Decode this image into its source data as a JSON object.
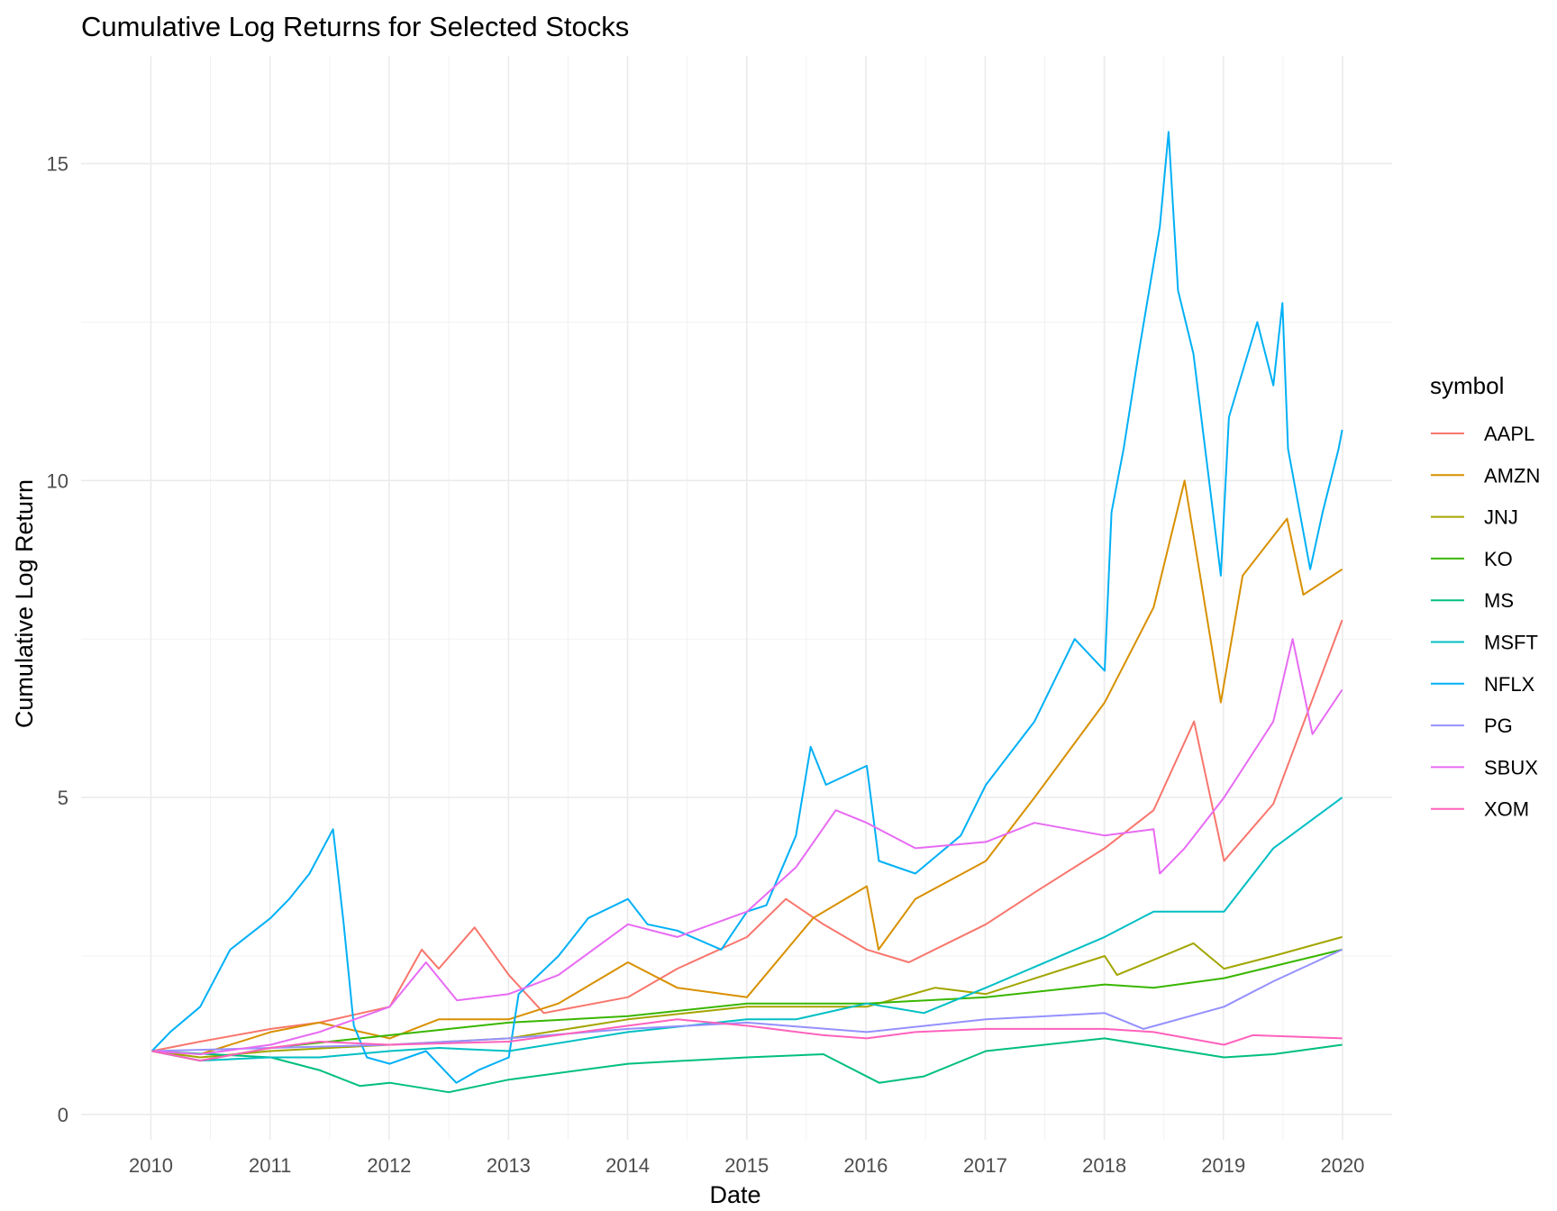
{
  "chart_data": {
    "type": "line",
    "title": "Cumulative Log Returns for Selected Stocks",
    "xlabel": "Date",
    "ylabel": "Cumulative Log Return",
    "xlim": [
      "2009-06-01",
      "2020-06-01"
    ],
    "ylim": [
      -0.4,
      16.7
    ],
    "x_ticks": [
      "2010-01-01",
      "2011-01-01",
      "2012-01-01",
      "2013-01-01",
      "2014-01-01",
      "2015-01-01",
      "2016-01-01",
      "2017-01-01",
      "2018-01-01",
      "2019-01-01",
      "2020-01-01"
    ],
    "x_tick_labels": [
      "2010",
      "2011",
      "2012",
      "2013",
      "2014",
      "2015",
      "2016",
      "2017",
      "2018",
      "2019",
      "2020"
    ],
    "y_ticks": [
      0,
      5,
      10,
      15
    ],
    "y_tick_labels": [
      "0",
      "5",
      "10",
      "15"
    ],
    "grid": true,
    "legend": {
      "title": "symbol",
      "position": "right"
    },
    "series": [
      {
        "name": "AAPL",
        "color": "#F8766D",
        "x": [
          "2010-01-04",
          "2010-06-01",
          "2011-01-03",
          "2011-06-01",
          "2012-01-03",
          "2012-04-10",
          "2012-06-01",
          "2012-09-19",
          "2013-01-02",
          "2013-04-19",
          "2014-01-02",
          "2014-06-02",
          "2015-01-02",
          "2015-05-01",
          "2015-08-24",
          "2016-01-04",
          "2016-05-12",
          "2017-01-03",
          "2017-06-01",
          "2018-01-02",
          "2018-06-01",
          "2018-10-03",
          "2019-01-03",
          "2019-06-03",
          "2019-12-31"
        ],
        "y": [
          1.0,
          1.15,
          1.35,
          1.45,
          1.7,
          2.6,
          2.3,
          2.95,
          2.2,
          1.6,
          1.85,
          2.3,
          2.8,
          3.4,
          3.0,
          2.6,
          2.4,
          3.0,
          3.5,
          4.2,
          4.8,
          6.2,
          4.0,
          4.9,
          7.8
        ]
      },
      {
        "name": "AMZN",
        "color": "#D89000",
        "x": [
          "2010-01-04",
          "2010-06-01",
          "2011-01-03",
          "2011-06-01",
          "2012-01-03",
          "2012-06-01",
          "2013-01-02",
          "2013-06-03",
          "2014-01-02",
          "2014-06-02",
          "2015-01-02",
          "2015-07-24",
          "2016-01-04",
          "2016-02-09",
          "2016-06-01",
          "2017-01-03",
          "2017-06-01",
          "2018-01-02",
          "2018-06-01",
          "2018-09-04",
          "2018-12-24",
          "2019-03-01",
          "2019-07-15",
          "2019-09-03",
          "2019-12-31"
        ],
        "y": [
          1.0,
          0.95,
          1.3,
          1.45,
          1.2,
          1.5,
          1.5,
          1.75,
          2.4,
          2.0,
          1.85,
          3.1,
          3.6,
          2.6,
          3.4,
          4.0,
          5.0,
          6.5,
          8.0,
          10.0,
          6.5,
          8.5,
          9.4,
          8.2,
          8.6
        ]
      },
      {
        "name": "JNJ",
        "color": "#A3A500",
        "x": [
          "2010-01-04",
          "2010-06-01",
          "2011-01-03",
          "2012-01-03",
          "2013-01-02",
          "2014-01-02",
          "2015-01-02",
          "2016-01-04",
          "2016-08-01",
          "2017-01-03",
          "2018-01-02",
          "2018-02-09",
          "2018-10-01",
          "2019-01-03",
          "2019-06-03",
          "2019-12-31"
        ],
        "y": [
          1.0,
          0.9,
          1.0,
          1.1,
          1.2,
          1.5,
          1.7,
          1.7,
          2.0,
          1.9,
          2.5,
          2.2,
          2.7,
          2.3,
          2.5,
          2.8
        ]
      },
      {
        "name": "KO",
        "color": "#39B600",
        "x": [
          "2010-01-04",
          "2010-06-01",
          "2011-01-03",
          "2012-01-03",
          "2013-01-02",
          "2014-01-02",
          "2015-01-02",
          "2016-01-04",
          "2017-01-03",
          "2018-01-02",
          "2018-06-01",
          "2019-01-03",
          "2019-12-31"
        ],
        "y": [
          1.0,
          0.85,
          1.05,
          1.25,
          1.45,
          1.55,
          1.75,
          1.75,
          1.85,
          2.05,
          2.0,
          2.15,
          2.6
        ]
      },
      {
        "name": "MS",
        "color": "#00BF7D",
        "x": [
          "2010-01-04",
          "2011-01-03",
          "2011-06-01",
          "2011-10-03",
          "2012-01-03",
          "2012-07-02",
          "2013-01-02",
          "2014-01-02",
          "2015-01-02",
          "2015-08-24",
          "2016-02-11",
          "2016-06-27",
          "2017-01-03",
          "2018-01-02",
          "2019-01-03",
          "2019-06-03",
          "2019-12-31"
        ],
        "y": [
          1.0,
          0.9,
          0.7,
          0.45,
          0.5,
          0.35,
          0.55,
          0.8,
          0.9,
          0.95,
          0.5,
          0.6,
          1.0,
          1.2,
          0.9,
          0.95,
          1.1
        ]
      },
      {
        "name": "MSFT",
        "color": "#00BFC4",
        "x": [
          "2010-01-04",
          "2010-06-01",
          "2011-01-03",
          "2011-06-01",
          "2012-01-03",
          "2012-06-01",
          "2013-01-02",
          "2014-01-02",
          "2015-01-02",
          "2015-06-01",
          "2016-01-04",
          "2016-06-27",
          "2017-01-03",
          "2018-01-02",
          "2018-06-01",
          "2019-01-03",
          "2019-06-03",
          "2019-12-31"
        ],
        "y": [
          1.0,
          0.85,
          0.9,
          0.9,
          1.0,
          1.05,
          1.0,
          1.3,
          1.5,
          1.5,
          1.75,
          1.6,
          2.0,
          2.8,
          3.2,
          3.2,
          4.2,
          5.0
        ]
      },
      {
        "name": "NFLX",
        "color": "#00B0F6",
        "x": [
          "2010-01-04",
          "2010-03-01",
          "2010-06-01",
          "2010-09-01",
          "2011-01-03",
          "2011-03-01",
          "2011-05-02",
          "2011-07-13",
          "2011-08-15",
          "2011-09-15",
          "2011-10-25",
          "2012-01-03",
          "2012-04-23",
          "2012-07-25",
          "2012-10-01",
          "2013-01-02",
          "2013-02-01",
          "2013-06-03",
          "2013-09-03",
          "2014-01-02",
          "2014-03-03",
          "2014-06-02",
          "2014-10-15",
          "2015-01-02",
          "2015-03-02",
          "2015-06-01",
          "2015-07-16",
          "2015-09-01",
          "2016-01-04",
          "2016-02-10",
          "2016-06-01",
          "2016-10-18",
          "2017-01-03",
          "2017-06-01",
          "2017-10-02",
          "2018-01-02",
          "2018-01-23",
          "2018-03-01",
          "2018-04-16",
          "2018-06-20",
          "2018-07-17",
          "2018-08-15",
          "2018-10-01",
          "2018-12-24",
          "2019-01-18",
          "2019-04-15",
          "2019-06-03",
          "2019-07-01",
          "2019-07-18",
          "2019-09-24",
          "2019-11-01",
          "2019-12-20",
          "2019-12-31"
        ],
        "y": [
          1.0,
          1.3,
          1.7,
          2.6,
          3.1,
          3.4,
          3.8,
          4.5,
          3.0,
          1.4,
          0.9,
          0.8,
          1.0,
          0.5,
          0.7,
          0.9,
          1.9,
          2.5,
          3.1,
          3.4,
          3.0,
          2.9,
          2.6,
          3.2,
          3.3,
          4.4,
          5.8,
          5.2,
          5.5,
          4.0,
          3.8,
          4.4,
          5.2,
          6.2,
          7.5,
          7.0,
          9.5,
          10.5,
          12.0,
          14.0,
          15.5,
          13.0,
          12.0,
          8.5,
          11.0,
          12.5,
          11.5,
          12.8,
          10.5,
          8.6,
          9.5,
          10.5,
          10.8
        ]
      },
      {
        "name": "PG",
        "color": "#9590FF",
        "x": [
          "2010-01-04",
          "2011-01-03",
          "2012-01-03",
          "2013-01-02",
          "2014-01-02",
          "2015-01-02",
          "2016-01-04",
          "2017-01-03",
          "2018-01-02",
          "2018-05-01",
          "2019-01-03",
          "2019-06-03",
          "2019-12-31"
        ],
        "y": [
          1.0,
          1.05,
          1.1,
          1.2,
          1.35,
          1.45,
          1.3,
          1.5,
          1.6,
          1.35,
          1.7,
          2.1,
          2.6
        ]
      },
      {
        "name": "SBUX",
        "color": "#E76BF3",
        "x": [
          "2010-01-04",
          "2010-06-01",
          "2011-01-03",
          "2011-06-01",
          "2012-01-03",
          "2012-04-23",
          "2012-07-27",
          "2013-01-02",
          "2013-06-03",
          "2014-01-02",
          "2014-06-02",
          "2015-01-02",
          "2015-06-01",
          "2015-10-01",
          "2016-01-04",
          "2016-06-01",
          "2017-01-03",
          "2017-06-01",
          "2018-01-02",
          "2018-06-01",
          "2018-06-20",
          "2018-09-04",
          "2019-01-03",
          "2019-06-03",
          "2019-08-01",
          "2019-10-01",
          "2019-12-31"
        ],
        "y": [
          1.0,
          0.95,
          1.1,
          1.3,
          1.7,
          2.4,
          1.8,
          1.9,
          2.2,
          3.0,
          2.8,
          3.2,
          3.9,
          4.8,
          4.6,
          4.2,
          4.3,
          4.6,
          4.4,
          4.5,
          3.8,
          4.2,
          5.0,
          6.2,
          7.5,
          6.0,
          6.7
        ]
      },
      {
        "name": "XOM",
        "color": "#FF62BC",
        "x": [
          "2010-01-04",
          "2010-06-01",
          "2011-01-03",
          "2011-06-01",
          "2012-01-03",
          "2013-01-02",
          "2014-01-02",
          "2014-06-02",
          "2015-01-02",
          "2015-08-24",
          "2016-01-04",
          "2016-06-01",
          "2017-01-03",
          "2018-01-02",
          "2018-06-01",
          "2019-01-03",
          "2019-04-01",
          "2019-12-31"
        ],
        "y": [
          1.0,
          0.85,
          1.05,
          1.15,
          1.1,
          1.15,
          1.4,
          1.5,
          1.4,
          1.25,
          1.2,
          1.3,
          1.35,
          1.35,
          1.3,
          1.1,
          1.25,
          1.2
        ]
      }
    ]
  }
}
